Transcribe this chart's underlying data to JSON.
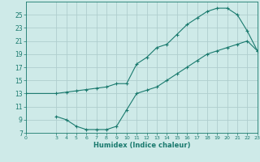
{
  "xlabel": "Humidex (Indice chaleur)",
  "background_color": "#ceeae8",
  "grid_color": "#b0cece",
  "line_color": "#1a7a6e",
  "upper_line": {
    "x": [
      0,
      3,
      4,
      5,
      6,
      7,
      8,
      9,
      10,
      11,
      12,
      13,
      14,
      15,
      16,
      17,
      18,
      19,
      20,
      21,
      22,
      23
    ],
    "y": [
      13,
      13,
      13.2,
      13.4,
      13.6,
      13.8,
      14,
      14.5,
      14.5,
      17.5,
      18.5,
      20,
      20.5,
      22,
      23.5,
      24.5,
      25.5,
      26,
      26,
      25,
      22.5,
      19.5
    ]
  },
  "lower_line": {
    "x": [
      3,
      4,
      5,
      6,
      7,
      8,
      9,
      10,
      11,
      12,
      13,
      14,
      15,
      16,
      17,
      18,
      19,
      20,
      21,
      22,
      23
    ],
    "y": [
      9.5,
      9,
      8,
      7.5,
      7.5,
      7.5,
      8,
      10.5,
      13,
      13.5,
      14,
      15,
      16,
      17,
      18,
      19,
      19.5,
      20,
      20.5,
      21,
      19.5
    ]
  },
  "ylim": [
    7,
    27
  ],
  "xlim": [
    0,
    23
  ],
  "yticks": [
    7,
    9,
    11,
    13,
    15,
    17,
    19,
    21,
    23,
    25
  ],
  "xticks": [
    0,
    3,
    4,
    5,
    6,
    7,
    8,
    9,
    10,
    11,
    12,
    13,
    14,
    15,
    16,
    17,
    18,
    19,
    20,
    21,
    22,
    23
  ],
  "xlabel_fontsize": 6.0,
  "ytick_fontsize": 5.5,
  "xtick_fontsize": 4.5
}
